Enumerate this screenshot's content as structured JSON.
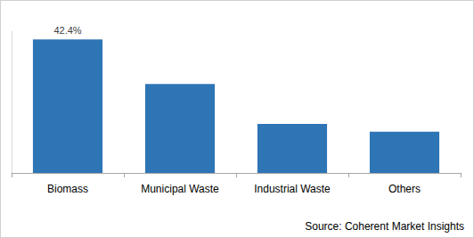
{
  "chart_data": {
    "type": "bar",
    "categories": [
      "Biomass",
      "Municipal Waste",
      "Industrial Waste",
      "Others"
    ],
    "values": [
      42.4,
      28.2,
      15.6,
      13.1
    ],
    "value_labels": [
      "42.4%",
      null,
      null,
      null
    ],
    "color": "#2e75b6",
    "ylim": [
      0,
      45
    ],
    "yticks": [],
    "grid": false,
    "tick_labels": "x",
    "annotations": [
      "Source: Coherent Market Insights"
    ]
  }
}
